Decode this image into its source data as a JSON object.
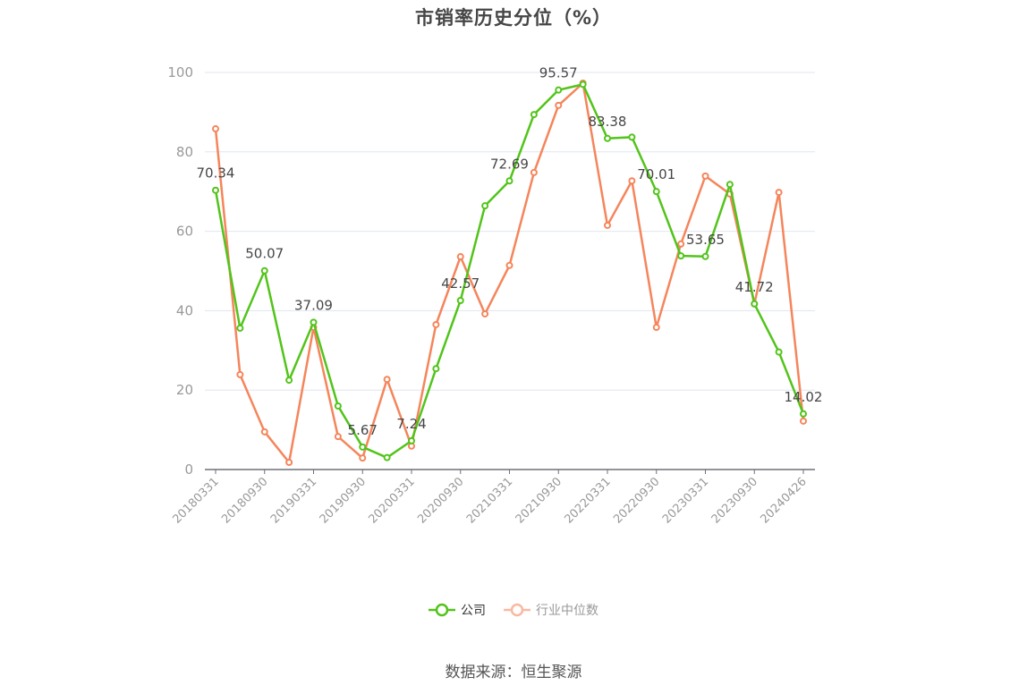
{
  "title": "市销率历史分位（%）",
  "legend": {
    "company": "公司",
    "industry": "行业中位数"
  },
  "source": "数据来源：恒生聚源",
  "colors": {
    "company": "#52c41a",
    "industry": "#f5855b",
    "industry_legend": "#f9b9a0",
    "grid": "#e0e6f1",
    "axis": "#6e7079",
    "label": "#999999"
  },
  "chart_data": {
    "type": "line",
    "title": "市销率历史分位（%）",
    "xlabel": "",
    "ylabel": "",
    "ylim": [
      0,
      100
    ],
    "yticks": [
      0,
      20,
      40,
      60,
      80,
      100
    ],
    "grid": true,
    "legend_position": "bottom",
    "x_tick_labels": [
      "20180331",
      "20180930",
      "20190331",
      "20190930",
      "20200331",
      "20200930",
      "20210331",
      "20210930",
      "20220331",
      "20220930",
      "20230331",
      "20230930",
      "20240426"
    ],
    "x": [
      "20180331",
      "20180630",
      "20180930",
      "20181231",
      "20190331",
      "20190630",
      "20190930",
      "20191231",
      "20200331",
      "20200630",
      "20200930",
      "20201231",
      "20210331",
      "20210630",
      "20210930",
      "20211231",
      "20220331",
      "20220630",
      "20220930",
      "20221231",
      "20230331",
      "20230630",
      "20230930",
      "20231231",
      "20240426"
    ],
    "series": [
      {
        "name": "公司",
        "values": [
          70.34,
          35.6,
          50.07,
          22.5,
          37.09,
          16.0,
          5.67,
          3.0,
          7.24,
          25.4,
          42.57,
          66.4,
          72.69,
          89.4,
          95.57,
          97.0,
          83.38,
          83.7,
          70.01,
          53.8,
          53.65,
          71.8,
          41.72,
          29.6,
          14.02
        ],
        "labeled_points": {
          "0": "70.34",
          "2": "50.07",
          "4": "37.09",
          "6": "5.67",
          "8": "7.24",
          "10": "42.57",
          "12": "72.69",
          "14": "95.57",
          "16": "83.38",
          "18": "70.01",
          "20": "53.65",
          "22": "41.72",
          "24": "14.02"
        }
      },
      {
        "name": "行业中位数",
        "values": [
          85.8,
          23.9,
          9.5,
          1.8,
          35.8,
          8.3,
          2.9,
          22.7,
          5.9,
          36.5,
          53.6,
          39.2,
          51.4,
          74.8,
          91.7,
          97.3,
          61.5,
          72.7,
          35.8,
          56.8,
          73.9,
          69.4,
          41.7,
          69.8,
          12.2
        ]
      }
    ]
  }
}
